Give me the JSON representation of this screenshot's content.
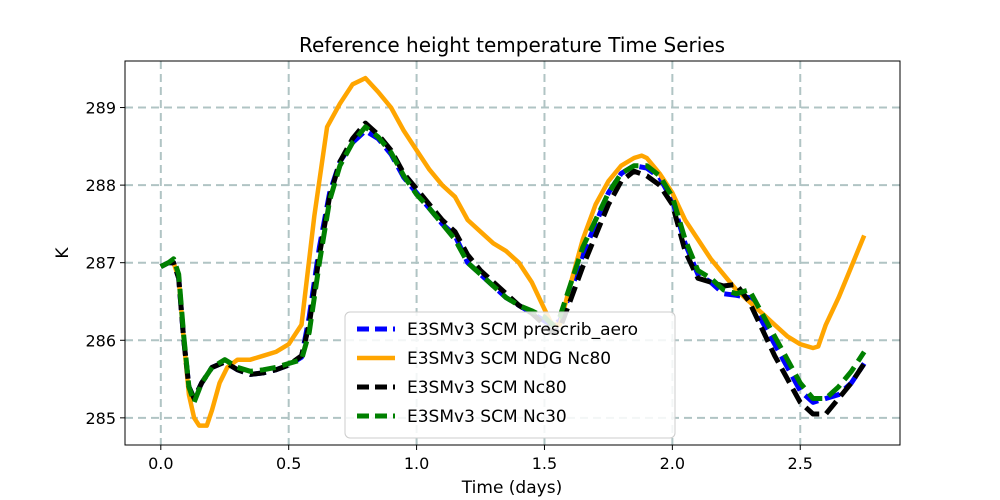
{
  "chart_data": {
    "type": "line",
    "title": "Reference height temperature Time Series",
    "xlabel": "Time (days)",
    "ylabel": "K",
    "xlim": [
      -0.14,
      2.89
    ],
    "ylim": [
      284.65,
      289.6
    ],
    "xticks": [
      0.0,
      0.5,
      1.0,
      1.5,
      2.0,
      2.5
    ],
    "xtick_labels": [
      "0.0",
      "0.5",
      "1.0",
      "1.5",
      "2.0",
      "2.5"
    ],
    "yticks": [
      285,
      286,
      287,
      288,
      289
    ],
    "ytick_labels": [
      "285",
      "286",
      "287",
      "288",
      "289"
    ],
    "grid": true,
    "legend_position": "lower-center",
    "series": [
      {
        "name": "E3SMv3 SCM prescrib_aero",
        "color": "#0000ff",
        "style": "dashed",
        "x": [
          0.0,
          0.03,
          0.05,
          0.07,
          0.09,
          0.11,
          0.13,
          0.16,
          0.2,
          0.25,
          0.3,
          0.35,
          0.4,
          0.45,
          0.5,
          0.55,
          0.58,
          0.62,
          0.66,
          0.7,
          0.75,
          0.8,
          0.85,
          0.9,
          0.95,
          1.0,
          1.05,
          1.1,
          1.15,
          1.2,
          1.25,
          1.3,
          1.35,
          1.4,
          1.45,
          1.5,
          1.53,
          1.56,
          1.6,
          1.65,
          1.7,
          1.75,
          1.8,
          1.85,
          1.9,
          1.95,
          2.0,
          2.05,
          2.1,
          2.15,
          2.2,
          2.25,
          2.3,
          2.35,
          2.4,
          2.45,
          2.5,
          2.55,
          2.6,
          2.65,
          2.7,
          2.75
        ],
        "y": [
          286.95,
          287.0,
          287.0,
          286.8,
          286.0,
          285.4,
          285.25,
          285.45,
          285.65,
          285.72,
          285.62,
          285.56,
          285.58,
          285.62,
          285.68,
          285.78,
          286.3,
          287.2,
          287.9,
          288.3,
          288.55,
          288.7,
          288.6,
          288.4,
          288.1,
          287.9,
          287.7,
          287.5,
          287.35,
          287.0,
          286.85,
          286.7,
          286.55,
          286.45,
          286.35,
          286.25,
          286.2,
          286.25,
          286.6,
          287.1,
          287.5,
          287.9,
          288.15,
          288.25,
          288.22,
          288.1,
          287.8,
          287.25,
          286.85,
          286.75,
          286.6,
          286.58,
          286.55,
          286.25,
          285.95,
          285.65,
          285.35,
          285.2,
          285.25,
          285.3,
          285.45,
          285.7
        ]
      },
      {
        "name": "E3SMv3 SCM NDG Nc80",
        "color": "#ffa500",
        "style": "solid",
        "x": [
          0.0,
          0.03,
          0.05,
          0.07,
          0.09,
          0.11,
          0.13,
          0.15,
          0.18,
          0.2,
          0.23,
          0.26,
          0.3,
          0.35,
          0.4,
          0.45,
          0.5,
          0.55,
          0.6,
          0.65,
          0.7,
          0.75,
          0.8,
          0.85,
          0.9,
          0.95,
          1.0,
          1.05,
          1.1,
          1.15,
          1.2,
          1.25,
          1.3,
          1.35,
          1.4,
          1.45,
          1.5,
          1.53,
          1.56,
          1.6,
          1.65,
          1.7,
          1.75,
          1.8,
          1.85,
          1.88,
          1.9,
          1.95,
          2.0,
          2.05,
          2.1,
          2.15,
          2.2,
          2.25,
          2.3,
          2.35,
          2.4,
          2.45,
          2.5,
          2.55,
          2.57,
          2.6,
          2.65,
          2.7,
          2.75
        ],
        "y": [
          286.95,
          287.0,
          287.0,
          286.8,
          286.0,
          285.3,
          285.0,
          284.9,
          284.9,
          285.1,
          285.45,
          285.65,
          285.75,
          285.75,
          285.8,
          285.85,
          285.95,
          286.2,
          287.6,
          288.75,
          289.05,
          289.3,
          289.38,
          289.2,
          289.0,
          288.7,
          288.45,
          288.2,
          288.0,
          287.85,
          287.55,
          287.4,
          287.25,
          287.15,
          287.0,
          286.75,
          286.4,
          286.2,
          286.2,
          286.7,
          287.3,
          287.75,
          288.05,
          288.25,
          288.35,
          288.38,
          288.35,
          288.15,
          287.9,
          287.55,
          287.3,
          287.05,
          286.85,
          286.65,
          286.5,
          286.35,
          286.2,
          286.05,
          285.95,
          285.9,
          285.92,
          286.2,
          286.55,
          286.95,
          287.35
        ]
      },
      {
        "name": "E3SMv3 SCM Nc80",
        "color": "#000000",
        "style": "dashed",
        "x": [
          0.0,
          0.03,
          0.05,
          0.07,
          0.09,
          0.11,
          0.13,
          0.16,
          0.2,
          0.25,
          0.3,
          0.35,
          0.4,
          0.45,
          0.5,
          0.55,
          0.58,
          0.62,
          0.66,
          0.7,
          0.75,
          0.8,
          0.85,
          0.9,
          0.95,
          1.0,
          1.05,
          1.1,
          1.15,
          1.2,
          1.25,
          1.3,
          1.35,
          1.4,
          1.45,
          1.5,
          1.53,
          1.56,
          1.6,
          1.65,
          1.7,
          1.75,
          1.8,
          1.85,
          1.9,
          1.95,
          2.0,
          2.05,
          2.1,
          2.15,
          2.2,
          2.25,
          2.3,
          2.35,
          2.4,
          2.45,
          2.5,
          2.55,
          2.6,
          2.65,
          2.7,
          2.75
        ],
        "y": [
          286.95,
          287.0,
          287.0,
          286.8,
          286.0,
          285.4,
          285.25,
          285.45,
          285.65,
          285.72,
          285.62,
          285.56,
          285.58,
          285.62,
          285.68,
          285.8,
          286.2,
          287.1,
          287.85,
          288.3,
          288.6,
          288.8,
          288.65,
          288.45,
          288.15,
          287.95,
          287.75,
          287.55,
          287.4,
          287.1,
          286.9,
          286.75,
          286.6,
          286.45,
          286.35,
          286.2,
          286.1,
          286.15,
          286.5,
          286.95,
          287.35,
          287.75,
          288.05,
          288.18,
          288.12,
          288.0,
          287.75,
          287.15,
          286.8,
          286.75,
          286.7,
          286.72,
          286.5,
          286.15,
          285.8,
          285.5,
          285.2,
          285.05,
          285.05,
          285.25,
          285.45,
          285.7
        ]
      },
      {
        "name": "E3SMv3 SCM Nc30",
        "color": "#008000",
        "style": "dashed",
        "x": [
          0.0,
          0.03,
          0.05,
          0.07,
          0.09,
          0.11,
          0.13,
          0.16,
          0.2,
          0.25,
          0.3,
          0.35,
          0.4,
          0.45,
          0.5,
          0.55,
          0.58,
          0.62,
          0.66,
          0.7,
          0.75,
          0.8,
          0.85,
          0.9,
          0.95,
          1.0,
          1.05,
          1.1,
          1.15,
          1.2,
          1.25,
          1.3,
          1.35,
          1.4,
          1.45,
          1.5,
          1.53,
          1.56,
          1.6,
          1.65,
          1.7,
          1.75,
          1.8,
          1.85,
          1.9,
          1.95,
          2.0,
          2.05,
          2.1,
          2.15,
          2.2,
          2.25,
          2.3,
          2.35,
          2.4,
          2.45,
          2.5,
          2.55,
          2.6,
          2.65,
          2.7,
          2.75
        ],
        "y": [
          286.95,
          287.0,
          287.05,
          286.85,
          286.05,
          285.4,
          285.2,
          285.45,
          285.65,
          285.75,
          285.65,
          285.6,
          285.62,
          285.65,
          285.7,
          285.75,
          286.1,
          287.0,
          287.8,
          288.25,
          288.55,
          288.75,
          288.62,
          288.42,
          288.12,
          287.88,
          287.7,
          287.5,
          287.3,
          287.0,
          286.85,
          286.7,
          286.55,
          286.45,
          286.38,
          286.3,
          286.2,
          286.3,
          286.7,
          287.2,
          287.55,
          287.9,
          288.15,
          288.25,
          288.25,
          288.12,
          287.85,
          287.3,
          286.9,
          286.8,
          286.65,
          286.6,
          286.65,
          286.35,
          286.05,
          285.75,
          285.45,
          285.25,
          285.25,
          285.4,
          285.6,
          285.85
        ]
      }
    ]
  }
}
